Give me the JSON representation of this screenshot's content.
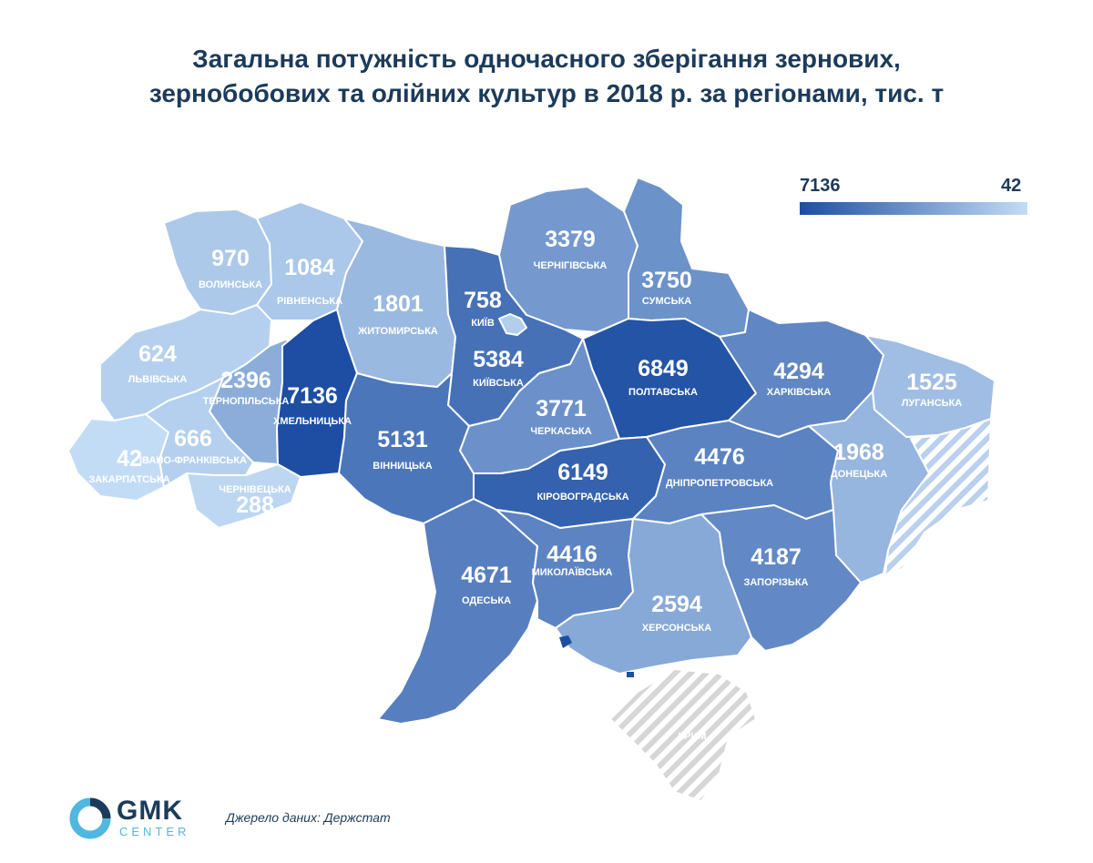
{
  "title_line1": "Загальна потужність одночасного зберігання зернових,",
  "title_line2": "зернобобових та олійних культур в 2018 р. за регіонами, тис. т",
  "legend": {
    "max_label": "7136",
    "min_label": "42",
    "color_max": "#1d4ea3",
    "color_min": "#c3dcf5"
  },
  "source": "Джерело даних: Держстат",
  "logo": {
    "name": "GMK",
    "sub": "CENTER"
  },
  "colors": {
    "occupied_hatch": "#b9d0ee",
    "crimea_hatch": "#d6d6d6",
    "border": "#ffffff",
    "sea_dot": "#1d4ea3"
  },
  "chart_data": {
    "type": "choropleth",
    "unit": "тис. т",
    "range": [
      42,
      7136
    ],
    "regions": [
      {
        "name": "ВОЛИНСЬКА",
        "value": 970
      },
      {
        "name": "РІВНЕНСЬКА",
        "value": 1084
      },
      {
        "name": "ЖИТОМИРСЬКА",
        "value": 1801
      },
      {
        "name": "КИЇВ",
        "value": 758
      },
      {
        "name": "ЧЕРНІГІВСЬКА",
        "value": 3379
      },
      {
        "name": "СУМСЬКА",
        "value": 3750
      },
      {
        "name": "ЛЬВІВСЬКА",
        "value": 624
      },
      {
        "name": "ТЕРНОПІЛЬСЬКА",
        "value": 2396
      },
      {
        "name": "ХМЕЛЬНИЦЬКА",
        "value": 7136
      },
      {
        "name": "КИЇВСЬКА",
        "value": 5384
      },
      {
        "name": "ПОЛТАВСЬКА",
        "value": 6849
      },
      {
        "name": "ХАРКІВСЬКА",
        "value": 4294
      },
      {
        "name": "ЛУГАНСЬКА",
        "value": 1525
      },
      {
        "name": "ЗАКАРПАТСЬКА",
        "value": 42
      },
      {
        "name": "ІВАНО-ФРАНКІВСЬКА",
        "value": 666
      },
      {
        "name": "ЧЕРНІВЕЦЬКА",
        "value": 288
      },
      {
        "name": "ВІННИЦЬКА",
        "value": 5131
      },
      {
        "name": "ЧЕРКАСЬКА",
        "value": 3771
      },
      {
        "name": "КІРОВОГРАДСЬКА",
        "value": 6149
      },
      {
        "name": "ДНІПРОПЕТРОВСЬКА",
        "value": 4476
      },
      {
        "name": "ДОНЕЦЬКА",
        "value": 1968
      },
      {
        "name": "ОДЕСЬКА",
        "value": 4671
      },
      {
        "name": "МИКОЛАЇВСЬКА",
        "value": 4416
      },
      {
        "name": "ХЕРСОНСЬКА",
        "value": 2594
      },
      {
        "name": "ЗАПОРІЗЬКА",
        "value": 4187
      }
    ],
    "no_data_regions": [
      {
        "name": "КРИМ"
      }
    ]
  }
}
